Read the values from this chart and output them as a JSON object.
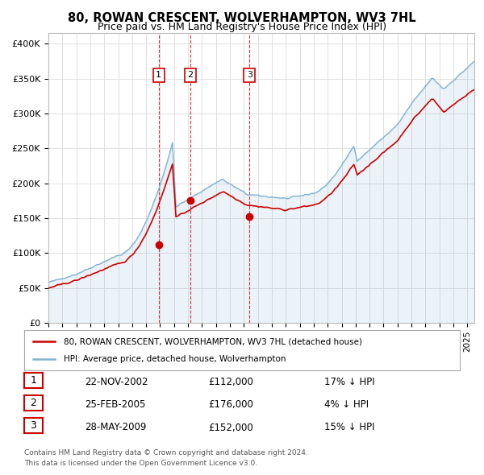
{
  "title": "80, ROWAN CRESCENT, WOLVERHAMPTON, WV3 7HL",
  "subtitle": "Price paid vs. HM Land Registry's House Price Index (HPI)",
  "title_fontsize": 10.5,
  "subtitle_fontsize": 9,
  "ylabel_ticks": [
    "£0",
    "£50K",
    "£100K",
    "£150K",
    "£200K",
    "£250K",
    "£300K",
    "£350K",
    "£400K"
  ],
  "ytick_vals": [
    0,
    50000,
    100000,
    150000,
    200000,
    250000,
    300000,
    350000,
    400000
  ],
  "ylim": [
    0,
    415000
  ],
  "xlim_start": 1995.0,
  "xlim_end": 2025.5,
  "background_color": "#ffffff",
  "grid_color": "#e0e0e0",
  "hpi_color": "#7fb3d3",
  "price_color": "#cc0000",
  "transactions": [
    {
      "label": "1",
      "date_num": 2002.9,
      "price": 112000,
      "pct": "17%",
      "date_str": "22-NOV-2002"
    },
    {
      "label": "2",
      "date_num": 2005.15,
      "price": 176000,
      "pct": "4%",
      "date_str": "25-FEB-2005"
    },
    {
      "label": "3",
      "date_num": 2009.4,
      "price": 152000,
      "pct": "15%",
      "date_str": "28-MAY-2009"
    }
  ],
  "legend_line1": "80, ROWAN CRESCENT, WOLVERHAMPTON, WV3 7HL (detached house)",
  "legend_line2": "HPI: Average price, detached house, Wolverhampton",
  "footer1": "Contains HM Land Registry data © Crown copyright and database right 2024.",
  "footer2": "This data is licensed under the Open Government Licence v3.0."
}
